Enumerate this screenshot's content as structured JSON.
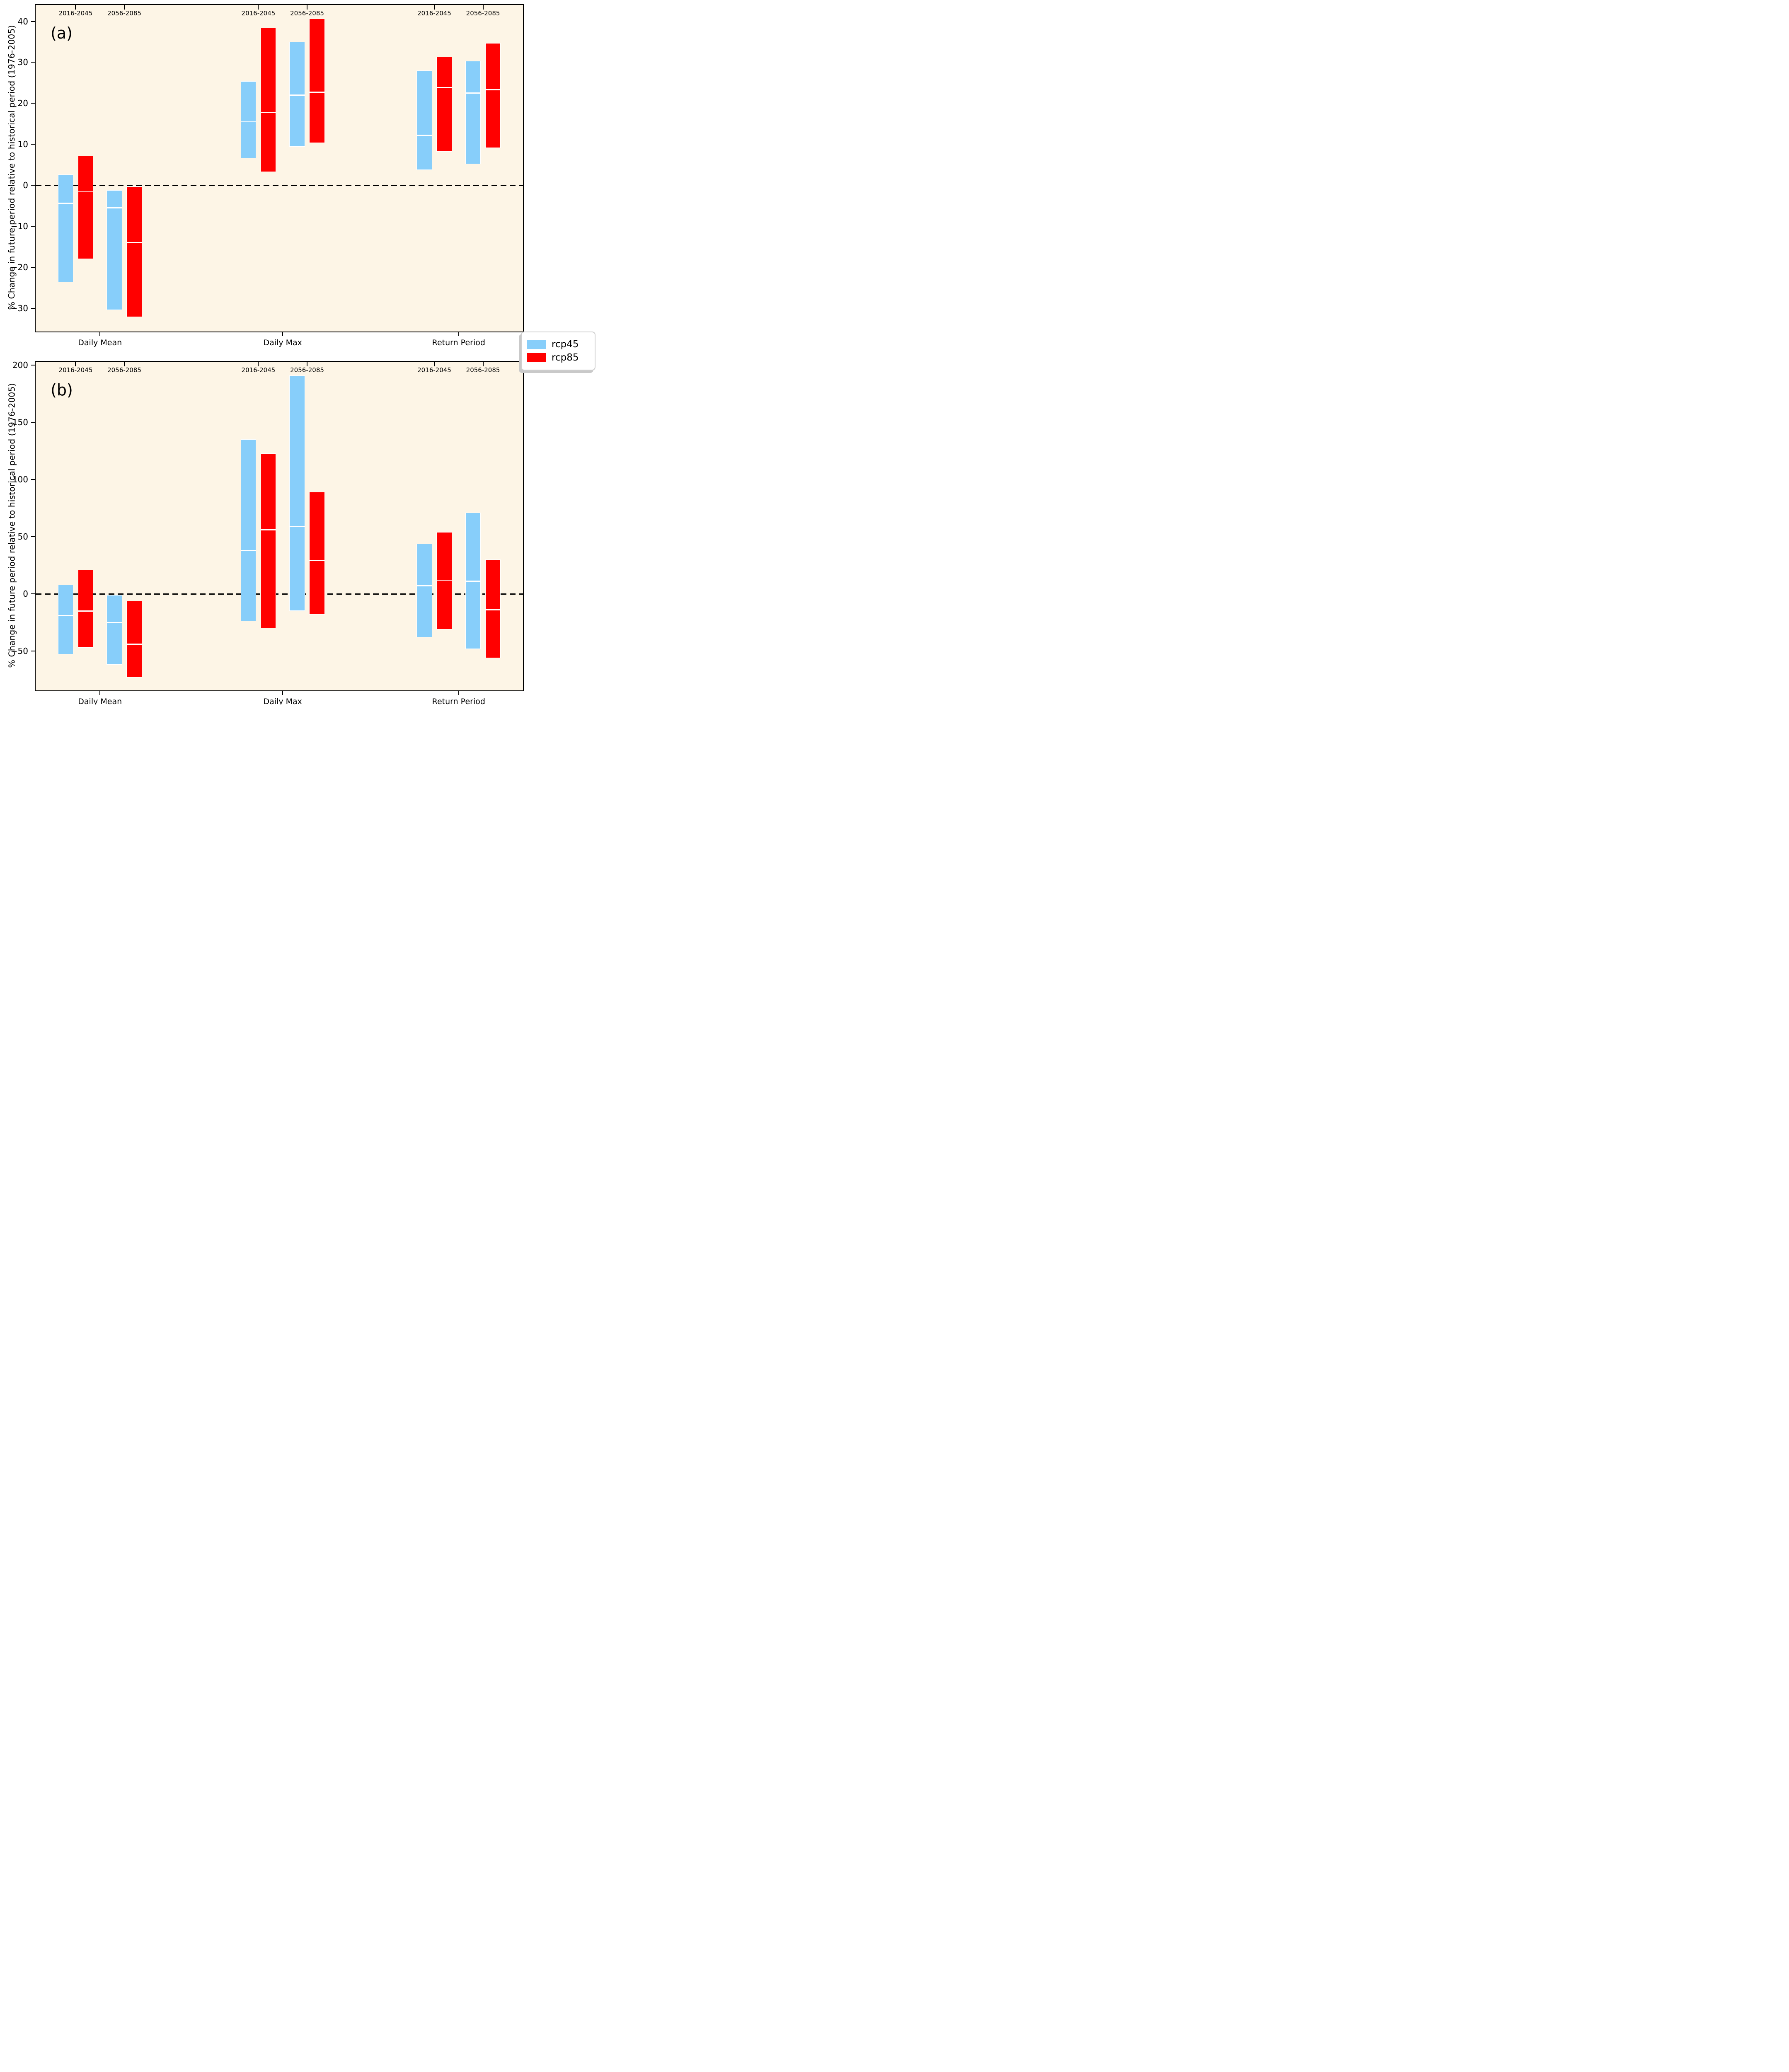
{
  "figure_title": "",
  "legend": {
    "items": [
      {
        "label": "rcp45",
        "color": "#87CEFA"
      },
      {
        "label": "rcp85",
        "color": "#FF0000"
      }
    ]
  },
  "chart_data": {
    "type": "bar",
    "subtype": "floating-range-bars-with-median",
    "background_color": "#FDF5E6",
    "zero_line": "dashed-black",
    "grid": false,
    "legend_position": "right-center-between-panels",
    "series": [
      {
        "name": "rcp45",
        "color": "#87CEFA"
      },
      {
        "name": "rcp85",
        "color": "#FF0000"
      }
    ],
    "panels": [
      {
        "letter": "(a)",
        "ylabel": "% Change in future period relative to historical period (1976-2005)",
        "ylim": [
          -35.7,
          44.0
        ],
        "yticks": [
          {
            "value": 40,
            "label": "40"
          },
          {
            "value": 30,
            "label": "30"
          },
          {
            "value": 20,
            "label": "20"
          },
          {
            "value": 10,
            "label": "10"
          },
          {
            "value": 0,
            "label": "0"
          },
          {
            "value": -10,
            "label": "−10"
          },
          {
            "value": -20,
            "label": "−20"
          },
          {
            "value": -30,
            "label": "−30"
          }
        ],
        "groups": [
          {
            "label": "Daily Mean",
            "periods": [
              {
                "label": "2016-2045",
                "bars": [
                  {
                    "series": "rcp45",
                    "low": -23.7,
                    "median": -4.4,
                    "high": 2.6
                  },
                  {
                    "series": "rcp85",
                    "low": -18.0,
                    "median": -1.6,
                    "high": 7.2
                  }
                ]
              },
              {
                "label": "2056-2085",
                "bars": [
                  {
                    "series": "rcp45",
                    "low": -30.4,
                    "median": -5.5,
                    "high": -1.2
                  },
                  {
                    "series": "rcp85",
                    "low": -32.2,
                    "median": -14.0,
                    "high": -0.3
                  }
                ]
              }
            ]
          },
          {
            "label": "Daily Max",
            "periods": [
              {
                "label": "2016-2045",
                "bars": [
                  {
                    "series": "rcp45",
                    "low": 6.6,
                    "median": 15.5,
                    "high": 25.4
                  },
                  {
                    "series": "rcp85",
                    "low": 3.2,
                    "median": 17.7,
                    "high": 38.4
                  }
                ]
              },
              {
                "label": "2056-2085",
                "bars": [
                  {
                    "series": "rcp45",
                    "low": 9.4,
                    "median": 22.0,
                    "high": 35.0
                  },
                  {
                    "series": "rcp85",
                    "low": 10.3,
                    "median": 22.7,
                    "high": 40.7
                  }
                ]
              }
            ]
          },
          {
            "label": "Return Period",
            "periods": [
              {
                "label": "2016-2045",
                "bars": [
                  {
                    "series": "rcp45",
                    "low": 3.7,
                    "median": 12.2,
                    "high": 28.0
                  },
                  {
                    "series": "rcp85",
                    "low": 8.2,
                    "median": 23.8,
                    "high": 31.4
                  }
                ]
              },
              {
                "label": "2056-2085",
                "bars": [
                  {
                    "series": "rcp45",
                    "low": 5.2,
                    "median": 22.5,
                    "high": 30.3
                  },
                  {
                    "series": "rcp85",
                    "low": 9.1,
                    "median": 23.3,
                    "high": 34.7
                  }
                ]
              }
            ]
          }
        ]
      },
      {
        "letter": "(b)",
        "ylabel": "% Change in future period relative to historical period (1976-2005)",
        "ylim": [
          -84.4,
          202.9
        ],
        "yticks": [
          {
            "value": 200,
            "label": "200"
          },
          {
            "value": 150,
            "label": "150"
          },
          {
            "value": 100,
            "label": "100"
          },
          {
            "value": 50,
            "label": "50"
          },
          {
            "value": 0,
            "label": "0"
          },
          {
            "value": -50,
            "label": "−50"
          }
        ],
        "groups": [
          {
            "label": "Daily Mean",
            "periods": [
              {
                "label": "2016-2045",
                "bars": [
                  {
                    "series": "rcp45",
                    "low": -53,
                    "median": -19,
                    "high": 8
                  },
                  {
                    "series": "rcp85",
                    "low": -47,
                    "median": -15,
                    "high": 21
                  }
                ]
              },
              {
                "label": "2056-2085",
                "bars": [
                  {
                    "series": "rcp45",
                    "low": -62,
                    "median": -25,
                    "high": -1
                  },
                  {
                    "series": "rcp85",
                    "low": -73,
                    "median": -44,
                    "high": -6
                  }
                ]
              }
            ]
          },
          {
            "label": "Daily Max",
            "periods": [
              {
                "label": "2016-2045",
                "bars": [
                  {
                    "series": "rcp45",
                    "low": -24,
                    "median": 38,
                    "high": 135
                  },
                  {
                    "series": "rcp85",
                    "low": -30,
                    "median": 56,
                    "high": 123
                  }
                ]
              },
              {
                "label": "2056-2085",
                "bars": [
                  {
                    "series": "rcp45",
                    "low": -15,
                    "median": 59,
                    "high": 191
                  },
                  {
                    "series": "rcp85",
                    "low": -18,
                    "median": 29,
                    "high": 89
                  }
                ]
              }
            ]
          },
          {
            "label": "Return Period",
            "periods": [
              {
                "label": "2016-2045",
                "bars": [
                  {
                    "series": "rcp45",
                    "low": -38,
                    "median": 7,
                    "high": 44
                  },
                  {
                    "series": "rcp85",
                    "low": -31,
                    "median": 12,
                    "high": 54
                  }
                ]
              },
              {
                "label": "2056-2085",
                "bars": [
                  {
                    "series": "rcp45",
                    "low": -48,
                    "median": 11,
                    "high": 71
                  },
                  {
                    "series": "rcp85",
                    "low": -56,
                    "median": -14,
                    "high": 30
                  }
                ]
              }
            ]
          }
        ]
      }
    ]
  }
}
